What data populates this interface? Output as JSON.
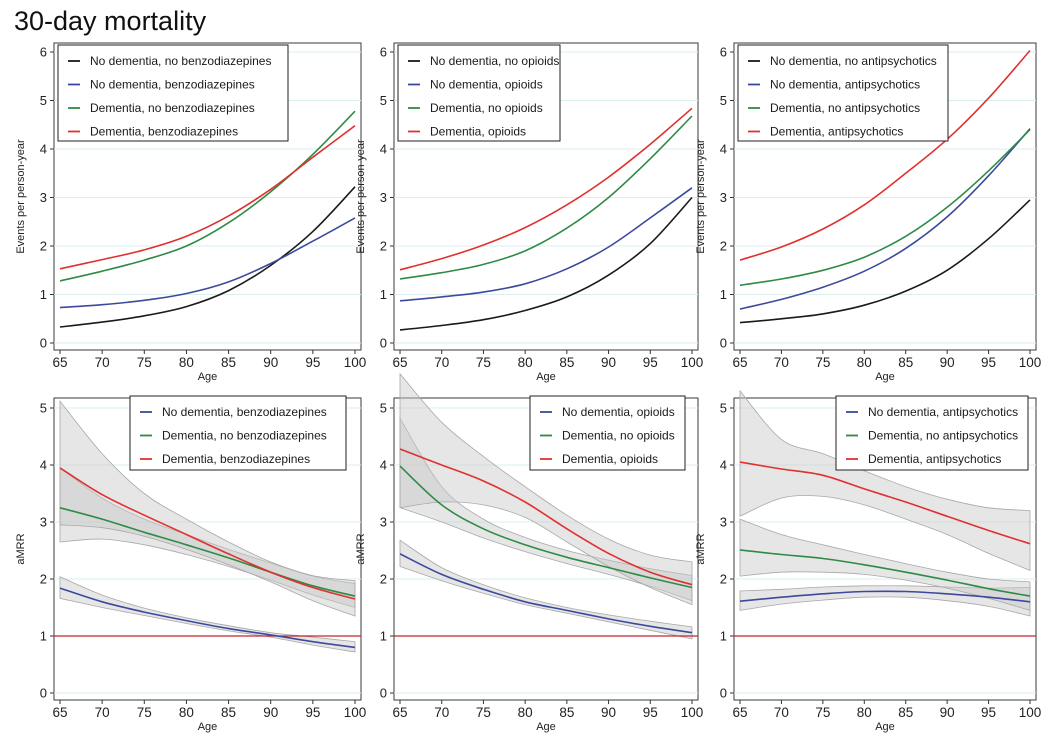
{
  "title": "30-day mortality",
  "colors": {
    "black": "#1a1a1a",
    "blue": "#3b4a9c",
    "green": "#2e8b46",
    "red": "#e0312e",
    "ref": "#c1272d",
    "band": "#c8c8c8",
    "grid": "#dcefef"
  },
  "chart_data": [
    {
      "type": "line",
      "id": "rate-benzodiazepines",
      "xlabel": "Age",
      "ylabel": "Events per person-year",
      "xlim": [
        65,
        100
      ],
      "ylim": [
        0,
        6
      ],
      "grid": true,
      "legend_position": "top-left",
      "x_ticks": [
        65,
        70,
        75,
        80,
        85,
        90,
        95,
        100
      ],
      "x_tick_labels": [
        "65",
        "70",
        "75",
        "80",
        "85",
        "90",
        "95",
        "100"
      ],
      "y_ticks": [
        0,
        1,
        2,
        3,
        4,
        5,
        6
      ],
      "y_tick_labels": [
        "0",
        "1",
        "2",
        "3",
        "4",
        "5",
        "6"
      ],
      "x": [
        65,
        70,
        75,
        80,
        85,
        90,
        95,
        100
      ],
      "series": [
        {
          "name": "No dementia, no benzodiazepines",
          "color": "black",
          "values": [
            0.33,
            0.43,
            0.56,
            0.75,
            1.08,
            1.6,
            2.3,
            3.22
          ]
        },
        {
          "name": "No dementia, benzodiazepines",
          "color": "blue",
          "values": [
            0.73,
            0.79,
            0.88,
            1.02,
            1.26,
            1.64,
            2.1,
            2.58
          ]
        },
        {
          "name": "Dementia, no benzodiazepines",
          "color": "green",
          "values": [
            1.28,
            1.48,
            1.71,
            2.0,
            2.48,
            3.12,
            3.89,
            4.78
          ]
        },
        {
          "name": "Dementia, benzodiazepines",
          "color": "red",
          "values": [
            1.53,
            1.72,
            1.92,
            2.2,
            2.62,
            3.17,
            3.83,
            4.48
          ]
        }
      ]
    },
    {
      "type": "line",
      "id": "rate-opioids",
      "xlabel": "Age",
      "ylabel": "Events per person-year",
      "xlim": [
        65,
        100
      ],
      "ylim": [
        0,
        6
      ],
      "grid": true,
      "legend_position": "top-left",
      "x_ticks": [
        65,
        70,
        75,
        80,
        85,
        90,
        95,
        100
      ],
      "x_tick_labels": [
        "65",
        "70",
        "75",
        "80",
        "85",
        "90",
        "95",
        "100"
      ],
      "y_ticks": [
        0,
        1,
        2,
        3,
        4,
        5,
        6
      ],
      "y_tick_labels": [
        "0",
        "1",
        "2",
        "3",
        "4",
        "5",
        "6"
      ],
      "x": [
        65,
        70,
        75,
        80,
        85,
        90,
        95,
        100
      ],
      "series": [
        {
          "name": "No dementia, no opioids",
          "color": "black",
          "values": [
            0.27,
            0.36,
            0.48,
            0.67,
            0.95,
            1.4,
            2.05,
            3.0
          ]
        },
        {
          "name": "No dementia, opioids",
          "color": "blue",
          "values": [
            0.87,
            0.95,
            1.05,
            1.22,
            1.53,
            1.98,
            2.58,
            3.2
          ]
        },
        {
          "name": "Dementia, no opioids",
          "color": "green",
          "values": [
            1.32,
            1.45,
            1.62,
            1.9,
            2.37,
            3.0,
            3.8,
            4.68
          ]
        },
        {
          "name": "Dementia, opioids",
          "color": "red",
          "values": [
            1.51,
            1.74,
            2.02,
            2.38,
            2.85,
            3.42,
            4.1,
            4.84
          ]
        }
      ]
    },
    {
      "type": "line",
      "id": "rate-antipsychotics",
      "xlabel": "Age",
      "ylabel": "Events per person-year",
      "xlim": [
        65,
        100
      ],
      "ylim": [
        0,
        6
      ],
      "grid": true,
      "legend_position": "top-left",
      "x_ticks": [
        65,
        70,
        75,
        80,
        85,
        90,
        95,
        100
      ],
      "x_tick_labels": [
        "65",
        "70",
        "75",
        "80",
        "85",
        "90",
        "95",
        "100"
      ],
      "y_ticks": [
        0,
        1,
        2,
        3,
        4,
        5,
        6
      ],
      "y_tick_labels": [
        "0",
        "1",
        "2",
        "3",
        "4",
        "5",
        "6"
      ],
      "x": [
        65,
        70,
        75,
        80,
        85,
        90,
        95,
        100
      ],
      "series": [
        {
          "name": "No dementia, no antipsychotics",
          "color": "black",
          "values": [
            0.42,
            0.5,
            0.6,
            0.78,
            1.07,
            1.5,
            2.15,
            2.95
          ]
        },
        {
          "name": "No dementia, antipsychotics",
          "color": "blue",
          "values": [
            0.7,
            0.9,
            1.15,
            1.48,
            1.95,
            2.6,
            3.45,
            4.42
          ]
        },
        {
          "name": "Dementia, no antipsychotics",
          "color": "green",
          "values": [
            1.19,
            1.32,
            1.5,
            1.77,
            2.2,
            2.8,
            3.55,
            4.4
          ]
        },
        {
          "name": "Dementia, antipsychotics",
          "color": "red",
          "values": [
            1.71,
            1.98,
            2.35,
            2.85,
            3.5,
            4.2,
            5.05,
            6.03
          ]
        }
      ]
    },
    {
      "type": "line",
      "id": "amrr-benzodiazepines",
      "xlabel": "Age",
      "ylabel": "aMRR",
      "xlim": [
        65,
        100
      ],
      "ylim": [
        0,
        5
      ],
      "grid": true,
      "legend_position": "top-right",
      "x_ticks": [
        65,
        70,
        75,
        80,
        85,
        90,
        95,
        100
      ],
      "x_tick_labels": [
        "65",
        "70",
        "75",
        "80",
        "85",
        "90",
        "95",
        "100"
      ],
      "y_ticks": [
        0,
        1,
        2,
        3,
        4,
        5
      ],
      "y_tick_labels": [
        "0",
        "1",
        "2",
        "3",
        "4",
        "5"
      ],
      "x": [
        65,
        70,
        75,
        80,
        85,
        90,
        95,
        100
      ],
      "reference_line": 1,
      "series": [
        {
          "name": "No dementia, benzodiazepines",
          "color": "blue",
          "values": [
            1.84,
            1.6,
            1.42,
            1.27,
            1.13,
            1.02,
            0.9,
            0.8
          ],
          "ci_low": [
            1.66,
            1.5,
            1.36,
            1.22,
            1.09,
            0.98,
            0.84,
            0.72
          ],
          "ci_high": [
            2.04,
            1.72,
            1.49,
            1.32,
            1.18,
            1.06,
            0.98,
            0.9
          ]
        },
        {
          "name": "Dementia, no benzodiazepines",
          "color": "green",
          "values": [
            3.25,
            3.05,
            2.82,
            2.6,
            2.37,
            2.12,
            1.88,
            1.7
          ],
          "ci_low": [
            2.65,
            2.7,
            2.6,
            2.43,
            2.22,
            1.98,
            1.72,
            1.5
          ],
          "ci_high": [
            3.95,
            3.42,
            3.05,
            2.78,
            2.52,
            2.28,
            2.05,
            1.92
          ]
        },
        {
          "name": "Dementia, benzodiazepines",
          "color": "red",
          "values": [
            3.95,
            3.48,
            3.12,
            2.78,
            2.44,
            2.12,
            1.85,
            1.65
          ],
          "ci_low": [
            2.95,
            2.9,
            2.75,
            2.52,
            2.25,
            1.95,
            1.62,
            1.35
          ],
          "ci_high": [
            5.12,
            4.2,
            3.5,
            3.05,
            2.65,
            2.3,
            2.06,
            1.97
          ]
        }
      ]
    },
    {
      "type": "line",
      "id": "amrr-opioids",
      "xlabel": "Age",
      "ylabel": "aMRR",
      "xlim": [
        65,
        100
      ],
      "ylim": [
        0,
        5
      ],
      "grid": true,
      "legend_position": "top-right",
      "x_ticks": [
        65,
        70,
        75,
        80,
        85,
        90,
        95,
        100
      ],
      "x_tick_labels": [
        "65",
        "70",
        "75",
        "80",
        "85",
        "90",
        "95",
        "100"
      ],
      "y_ticks": [
        0,
        1,
        2,
        3,
        4,
        5
      ],
      "y_tick_labels": [
        "0",
        "1",
        "2",
        "3",
        "4",
        "5"
      ],
      "x": [
        65,
        70,
        75,
        80,
        85,
        90,
        95,
        100
      ],
      "reference_line": 1,
      "series": [
        {
          "name": "No dementia, opioids",
          "color": "blue",
          "values": [
            2.44,
            2.08,
            1.82,
            1.6,
            1.45,
            1.3,
            1.17,
            1.06
          ],
          "ci_low": [
            2.22,
            1.97,
            1.75,
            1.55,
            1.4,
            1.25,
            1.1,
            0.95
          ],
          "ci_high": [
            2.68,
            2.2,
            1.9,
            1.67,
            1.5,
            1.37,
            1.26,
            1.16
          ]
        },
        {
          "name": "Dementia, no opioids",
          "color": "green",
          "values": [
            3.98,
            3.3,
            2.88,
            2.6,
            2.38,
            2.2,
            2.02,
            1.85
          ],
          "ci_low": [
            3.25,
            3.0,
            2.72,
            2.48,
            2.27,
            2.08,
            1.87,
            1.62
          ],
          "ci_high": [
            4.82,
            3.62,
            3.05,
            2.73,
            2.5,
            2.33,
            2.18,
            2.06
          ]
        },
        {
          "name": "Dementia, opioids",
          "color": "red",
          "values": [
            4.28,
            4.0,
            3.72,
            3.35,
            2.88,
            2.45,
            2.12,
            1.9
          ],
          "ci_low": [
            3.25,
            3.35,
            3.3,
            3.08,
            2.65,
            2.22,
            1.85,
            1.55
          ],
          "ci_high": [
            5.6,
            4.75,
            4.15,
            3.62,
            3.12,
            2.7,
            2.42,
            2.3
          ]
        }
      ]
    },
    {
      "type": "line",
      "id": "amrr-antipsychotics",
      "xlabel": "Age",
      "ylabel": "aMRR",
      "xlim": [
        65,
        100
      ],
      "ylim": [
        0,
        5
      ],
      "grid": true,
      "legend_position": "top-right",
      "x_ticks": [
        65,
        70,
        75,
        80,
        85,
        90,
        95,
        100
      ],
      "x_tick_labels": [
        "65",
        "70",
        "75",
        "80",
        "85",
        "90",
        "95",
        "100"
      ],
      "y_ticks": [
        0,
        1,
        2,
        3,
        4,
        5
      ],
      "y_tick_labels": [
        "0",
        "1",
        "2",
        "3",
        "4",
        "5"
      ],
      "x": [
        65,
        70,
        75,
        80,
        85,
        90,
        95,
        100
      ],
      "reference_line": 1,
      "series": [
        {
          "name": "No dementia, antipsychotics",
          "color": "blue",
          "values": [
            1.61,
            1.68,
            1.74,
            1.78,
            1.78,
            1.74,
            1.68,
            1.6
          ],
          "ci_low": [
            1.45,
            1.56,
            1.63,
            1.68,
            1.68,
            1.62,
            1.52,
            1.35
          ],
          "ci_high": [
            1.79,
            1.82,
            1.86,
            1.88,
            1.88,
            1.86,
            1.84,
            1.85
          ]
        },
        {
          "name": "Dementia, no antipsychotics",
          "color": "green",
          "values": [
            2.51,
            2.43,
            2.36,
            2.25,
            2.12,
            1.98,
            1.83,
            1.7
          ],
          "ci_low": [
            2.05,
            2.12,
            2.12,
            2.08,
            1.98,
            1.84,
            1.66,
            1.45
          ],
          "ci_high": [
            3.05,
            2.78,
            2.6,
            2.43,
            2.27,
            2.12,
            2.0,
            1.95
          ]
        },
        {
          "name": "Dementia, antipsychotics",
          "color": "red",
          "values": [
            4.05,
            3.93,
            3.82,
            3.58,
            3.35,
            3.1,
            2.85,
            2.62
          ],
          "ci_low": [
            3.1,
            3.42,
            3.45,
            3.3,
            3.05,
            2.78,
            2.45,
            2.15
          ],
          "ci_high": [
            5.3,
            4.45,
            4.2,
            3.9,
            3.62,
            3.4,
            3.25,
            3.2
          ]
        }
      ]
    }
  ]
}
